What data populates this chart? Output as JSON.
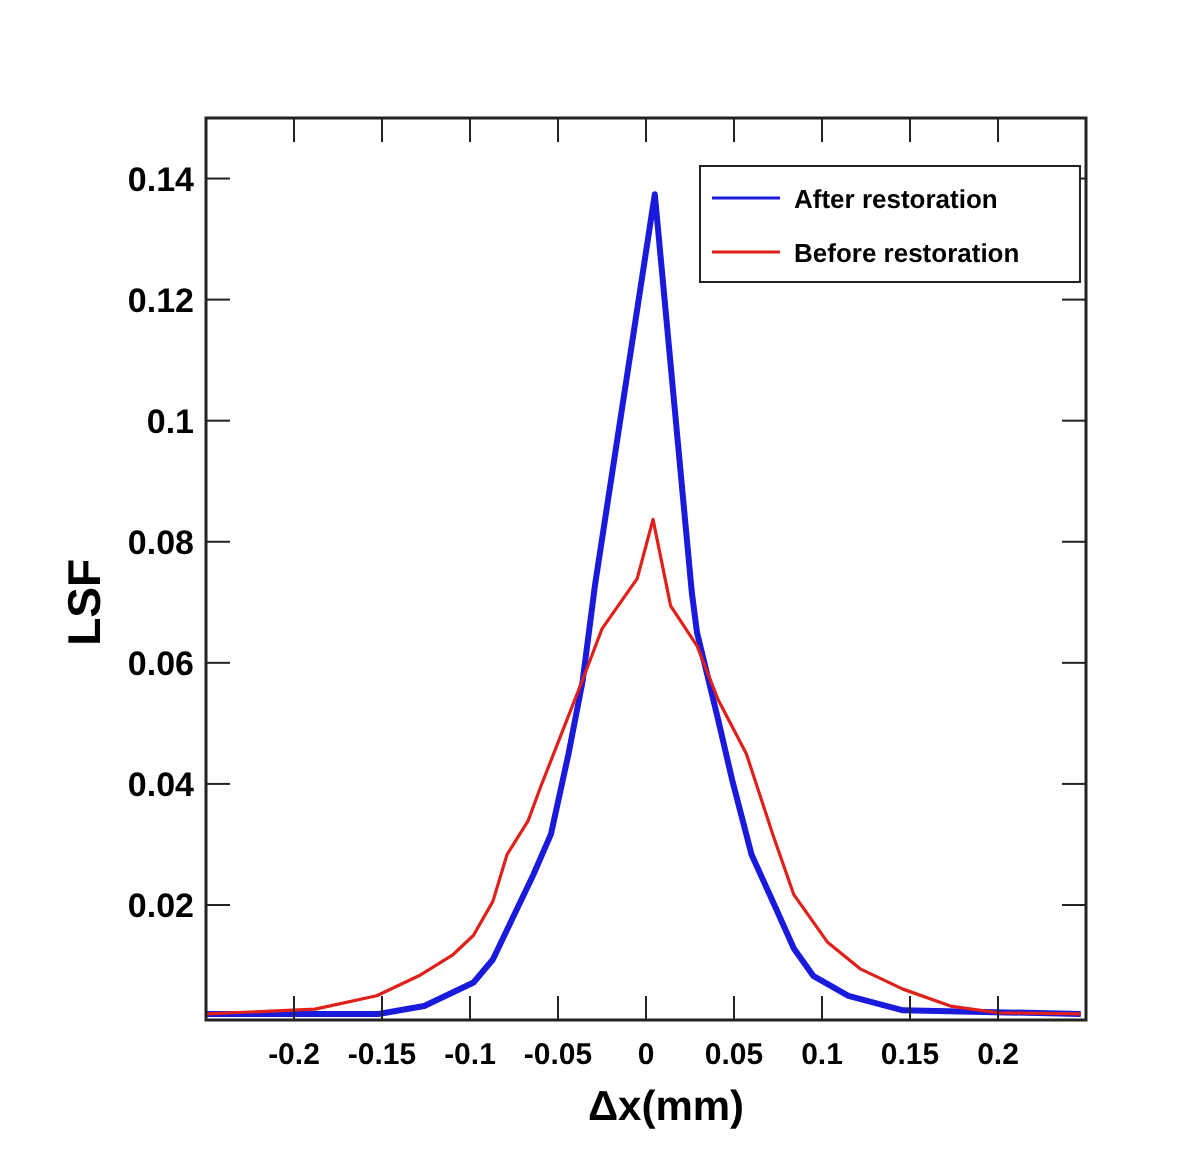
{
  "chart_data": {
    "type": "line",
    "xlabel": "Δx(mm)",
    "ylabel": "LSF",
    "xlim": [
      -0.25,
      0.25
    ],
    "ylim": [
      0.001,
      0.15
    ],
    "xticks": [
      -0.2,
      -0.15,
      -0.1,
      -0.05,
      0,
      0.05,
      0.1,
      0.15,
      0.2
    ],
    "yticks": [
      0.02,
      0.04,
      0.06,
      0.08,
      0.1,
      0.12,
      0.14
    ],
    "grid": false,
    "legend": "top right",
    "marker": "none",
    "line_style": "solid",
    "series": [
      {
        "name": "After restoration",
        "color": "#1a1adc",
        "x": [
          -0.25,
          -0.152,
          -0.126,
          -0.098,
          -0.087,
          -0.075,
          -0.064,
          -0.054,
          -0.044,
          -0.036,
          -0.029,
          0.005,
          0.026,
          0.029,
          0.041,
          0.049,
          0.06,
          0.072,
          0.084,
          0.095,
          0.115,
          0.146,
          0.247
        ],
        "values": [
          0.002,
          0.002,
          0.0033,
          0.0072,
          0.011,
          0.0183,
          0.025,
          0.0317,
          0.045,
          0.057,
          0.0728,
          0.1374,
          0.0717,
          0.065,
          0.0506,
          0.0406,
          0.0283,
          0.0206,
          0.0128,
          0.0083,
          0.005,
          0.0026,
          0.002
        ]
      },
      {
        "name": "Before restoration",
        "color": "#e0201a",
        "x": [
          -0.25,
          -0.188,
          -0.153,
          -0.129,
          -0.11,
          -0.098,
          -0.087,
          -0.079,
          -0.067,
          -0.06,
          -0.048,
          -0.036,
          -0.025,
          -0.013,
          -0.005,
          0.004,
          0.014,
          0.029,
          0.041,
          0.057,
          0.072,
          0.084,
          0.103,
          0.122,
          0.146,
          0.173,
          0.2,
          0.247
        ],
        "values": [
          0.002,
          0.0028,
          0.005,
          0.0083,
          0.0117,
          0.015,
          0.0206,
          0.0283,
          0.0339,
          0.0394,
          0.0483,
          0.0572,
          0.0656,
          0.0706,
          0.0739,
          0.0837,
          0.0694,
          0.0628,
          0.0539,
          0.045,
          0.0317,
          0.0217,
          0.0139,
          0.0094,
          0.0061,
          0.0033,
          0.0022,
          0.002
        ]
      }
    ]
  }
}
